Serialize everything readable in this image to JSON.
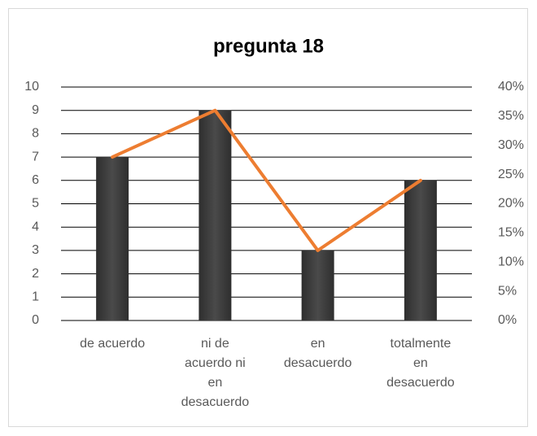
{
  "chart_data": {
    "type": "bar-line",
    "title": "pregunta 18",
    "categories": [
      "de acuerdo",
      "ni de acuerdo ni en desacuerdo",
      "en desacuerdo",
      "totalmente en desacuerdo"
    ],
    "series": [
      {
        "type": "bar",
        "color": "#3a3a3a",
        "values": [
          7,
          9,
          3,
          6
        ]
      },
      {
        "type": "line",
        "axis": "y2",
        "color": "#ed7d31",
        "values": [
          28,
          36,
          12,
          24
        ]
      }
    ],
    "ylim": [
      0,
      10
    ],
    "yticks": [
      0,
      1,
      2,
      3,
      4,
      5,
      6,
      7,
      8,
      9,
      10
    ],
    "y2lim": [
      0,
      40
    ],
    "y2ticks": [
      {
        "value": 0,
        "label": "0%"
      },
      {
        "value": 5,
        "label": "5%"
      },
      {
        "value": 10,
        "label": "10%"
      },
      {
        "value": 15,
        "label": "15%"
      },
      {
        "value": 20,
        "label": "20%"
      },
      {
        "value": 25,
        "label": "25%"
      },
      {
        "value": 30,
        "label": "30%"
      },
      {
        "value": 35,
        "label": "35%"
      },
      {
        "value": 40,
        "label": "40%"
      }
    ],
    "grid": true
  }
}
